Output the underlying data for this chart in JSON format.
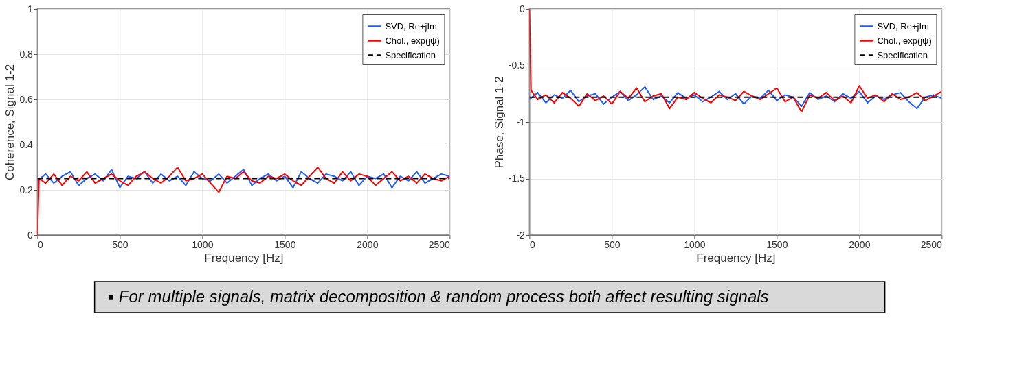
{
  "chart_data": [
    {
      "type": "line",
      "xlabel": "Frequency [Hz]",
      "ylabel": "Coherence, Signal 1-2",
      "xlim": [
        0,
        2500
      ],
      "xticks": [
        0,
        500,
        1000,
        1500,
        2000,
        2500
      ],
      "ylim": [
        0,
        1
      ],
      "yticks": [
        0,
        0.2,
        0.4,
        0.6,
        0.8,
        1
      ],
      "grid": true,
      "legend": "top right",
      "line_style": "solid",
      "annotations": [
        "▪ For multiple signals, matrix decomposition & random process both affect resulting signals"
      ],
      "series": [
        {
          "name": "SVD, Re+jIm",
          "color": "#1f5fff",
          "x": [
            0,
            50,
            100,
            150,
            200,
            250,
            300,
            350,
            400,
            450,
            500,
            550,
            600,
            650,
            700,
            750,
            800,
            850,
            900,
            950,
            1000,
            1050,
            1100,
            1150,
            1200,
            1250,
            1300,
            1350,
            1400,
            1450,
            1500,
            1550,
            1600,
            1650,
            1700,
            1750,
            1800,
            1850,
            1900,
            1950,
            2000,
            2050,
            2100,
            2150,
            2200,
            2250,
            2300,
            2350,
            2400,
            2450,
            2500
          ],
          "values": [
            0.24,
            0.27,
            0.23,
            0.26,
            0.28,
            0.22,
            0.25,
            0.27,
            0.24,
            0.29,
            0.21,
            0.26,
            0.25,
            0.28,
            0.23,
            0.27,
            0.24,
            0.26,
            0.22,
            0.28,
            0.25,
            0.24,
            0.27,
            0.23,
            0.26,
            0.29,
            0.22,
            0.25,
            0.27,
            0.24,
            0.26,
            0.21,
            0.28,
            0.25,
            0.23,
            0.27,
            0.26,
            0.24,
            0.28,
            0.22,
            0.26,
            0.25,
            0.27,
            0.21,
            0.26,
            0.24,
            0.28,
            0.23,
            0.25,
            0.27,
            0.26
          ]
        },
        {
          "name": "Chol., exp(jψ)",
          "color": "#ff0000",
          "x": [
            0,
            10,
            50,
            100,
            150,
            200,
            250,
            300,
            350,
            400,
            450,
            500,
            550,
            600,
            650,
            700,
            750,
            800,
            850,
            900,
            950,
            1000,
            1050,
            1100,
            1150,
            1200,
            1250,
            1300,
            1350,
            1400,
            1450,
            1500,
            1550,
            1600,
            1650,
            1700,
            1750,
            1800,
            1850,
            1900,
            1950,
            2000,
            2050,
            2100,
            2150,
            2200,
            2250,
            2300,
            2350,
            2400,
            2450,
            2500
          ],
          "values": [
            0,
            0.25,
            0.23,
            0.27,
            0.22,
            0.26,
            0.24,
            0.28,
            0.23,
            0.25,
            0.27,
            0.24,
            0.22,
            0.26,
            0.28,
            0.25,
            0.23,
            0.26,
            0.3,
            0.24,
            0.25,
            0.27,
            0.23,
            0.19,
            0.26,
            0.25,
            0.28,
            0.24,
            0.23,
            0.26,
            0.25,
            0.27,
            0.24,
            0.22,
            0.26,
            0.3,
            0.25,
            0.23,
            0.28,
            0.24,
            0.27,
            0.26,
            0.22,
            0.25,
            0.28,
            0.24,
            0.26,
            0.23,
            0.27,
            0.25,
            0.24,
            0.26
          ]
        },
        {
          "name": "Specification",
          "color": "#000000",
          "line_style": "dashed",
          "x": [
            0,
            2500
          ],
          "values": [
            0.25,
            0.25
          ]
        }
      ]
    },
    {
      "type": "line",
      "xlabel": "Frequency [Hz]",
      "ylabel": "Phase, Signal 1-2",
      "xlim": [
        0,
        2500
      ],
      "xticks": [
        0,
        500,
        1000,
        1500,
        2000,
        2500
      ],
      "ylim": [
        -2,
        0
      ],
      "yticks": [
        -2,
        -1.5,
        -1,
        -0.5,
        0
      ],
      "grid": true,
      "legend": "top right",
      "line_style": "solid",
      "series": [
        {
          "name": "SVD, Re+jIm",
          "color": "#1f5fff",
          "x": [
            0,
            50,
            100,
            150,
            200,
            250,
            300,
            350,
            400,
            450,
            500,
            550,
            600,
            650,
            700,
            750,
            800,
            850,
            900,
            950,
            1000,
            1050,
            1100,
            1150,
            1200,
            1250,
            1300,
            1350,
            1400,
            1450,
            1500,
            1550,
            1600,
            1650,
            1700,
            1750,
            1800,
            1850,
            1900,
            1950,
            2000,
            2050,
            2100,
            2150,
            2200,
            2250,
            2300,
            2350,
            2400,
            2450,
            2500
          ],
          "values": [
            -0.8,
            -0.74,
            -0.83,
            -0.76,
            -0.79,
            -0.72,
            -0.82,
            -0.77,
            -0.75,
            -0.84,
            -0.78,
            -0.73,
            -0.81,
            -0.76,
            -0.69,
            -0.8,
            -0.77,
            -0.83,
            -0.74,
            -0.79,
            -0.76,
            -0.82,
            -0.78,
            -0.73,
            -0.8,
            -0.75,
            -0.84,
            -0.77,
            -0.79,
            -0.72,
            -0.81,
            -0.76,
            -0.78,
            -0.86,
            -0.74,
            -0.8,
            -0.77,
            -0.82,
            -0.75,
            -0.79,
            -0.73,
            -0.83,
            -0.77,
            -0.8,
            -0.76,
            -0.74,
            -0.82,
            -0.88,
            -0.78,
            -0.76,
            -0.79
          ]
        },
        {
          "name": "Chol., exp(jψ)",
          "color": "#ff0000",
          "x": [
            0,
            10,
            50,
            100,
            150,
            200,
            250,
            300,
            350,
            400,
            450,
            500,
            550,
            600,
            650,
            700,
            750,
            800,
            850,
            900,
            950,
            1000,
            1050,
            1100,
            1150,
            1200,
            1250,
            1300,
            1350,
            1400,
            1450,
            1500,
            1550,
            1600,
            1650,
            1700,
            1750,
            1800,
            1850,
            1900,
            1950,
            2000,
            2050,
            2100,
            2150,
            2200,
            2250,
            2300,
            2350,
            2400,
            2450,
            2500
          ],
          "values": [
            0,
            -0.72,
            -0.8,
            -0.76,
            -0.83,
            -0.74,
            -0.79,
            -0.86,
            -0.75,
            -0.81,
            -0.77,
            -0.84,
            -0.73,
            -0.79,
            -0.7,
            -0.82,
            -0.77,
            -0.75,
            -0.88,
            -0.78,
            -0.8,
            -0.74,
            -0.79,
            -0.83,
            -0.76,
            -0.78,
            -0.81,
            -0.73,
            -0.77,
            -0.8,
            -0.75,
            -0.7,
            -0.82,
            -0.78,
            -0.91,
            -0.76,
            -0.79,
            -0.74,
            -0.81,
            -0.77,
            -0.83,
            -0.68,
            -0.79,
            -0.76,
            -0.82,
            -0.75,
            -0.8,
            -0.78,
            -0.74,
            -0.81,
            -0.77,
            -0.73
          ]
        },
        {
          "name": "Specification",
          "color": "#000000",
          "line_style": "dashed",
          "x": [
            0,
            2500
          ],
          "values": [
            -0.78,
            -0.78
          ]
        }
      ]
    }
  ]
}
